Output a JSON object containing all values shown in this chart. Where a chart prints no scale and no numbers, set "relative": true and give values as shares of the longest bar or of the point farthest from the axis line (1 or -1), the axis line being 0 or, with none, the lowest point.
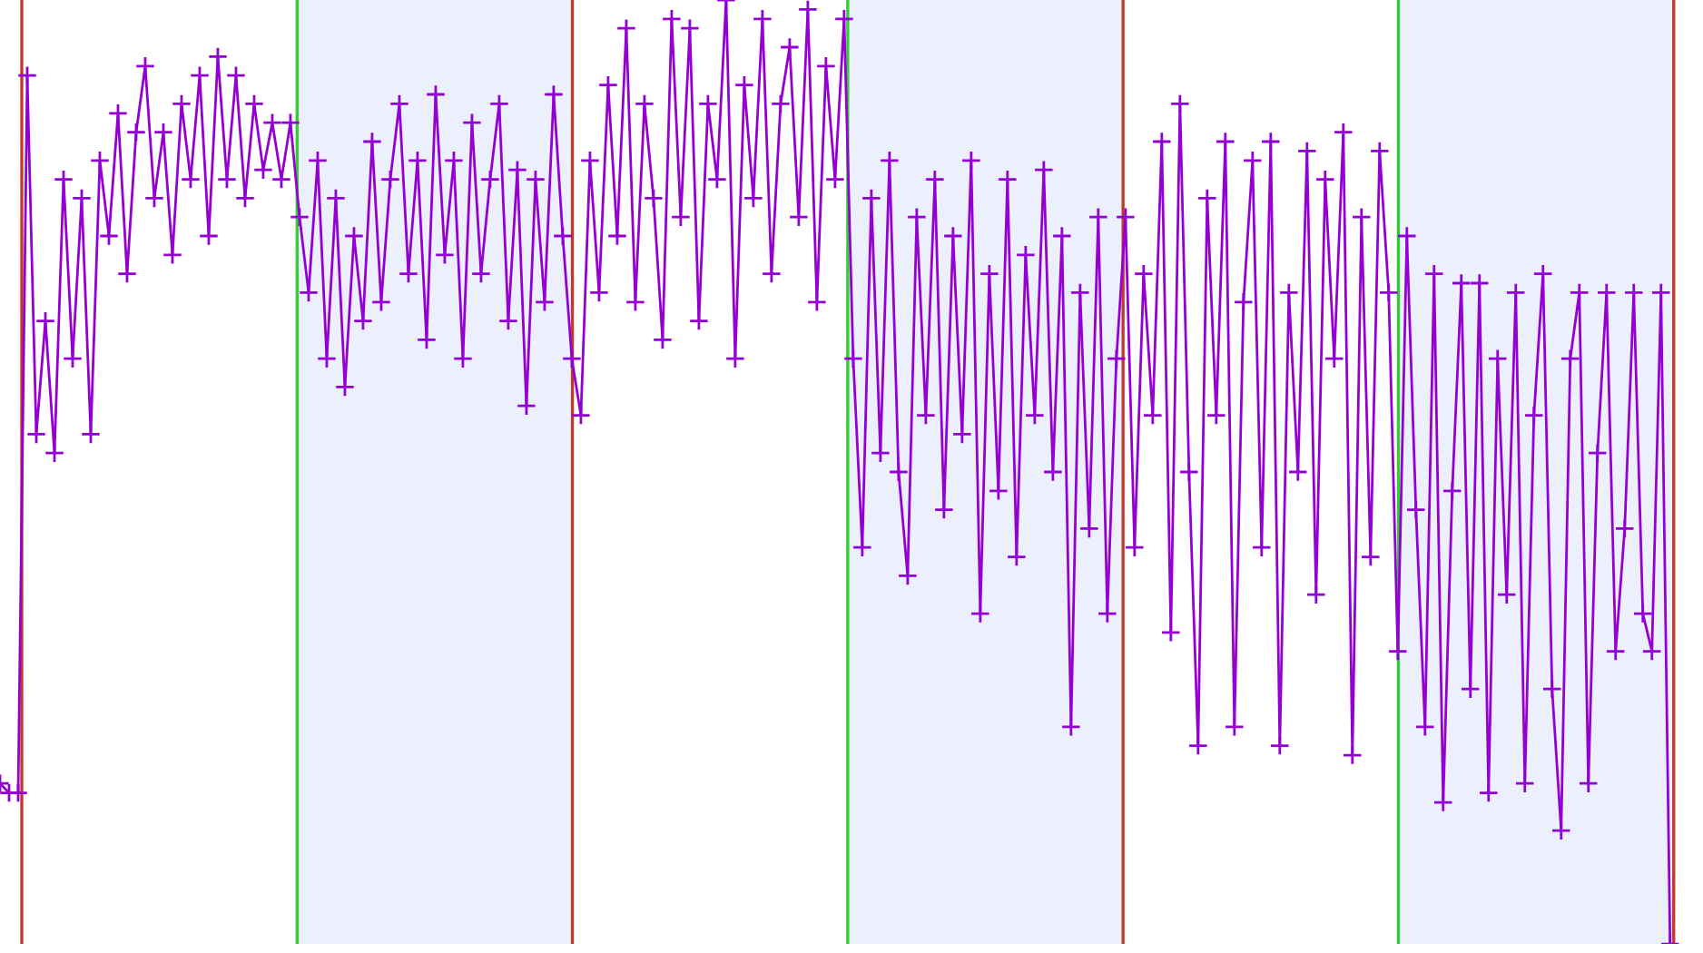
{
  "chart_data": {
    "type": "line",
    "relative": true,
    "marker": "cross",
    "line_style": "solid",
    "grid": false,
    "categories": [
      null,
      null,
      null,
      null,
      null,
      null,
      null,
      null,
      null,
      null,
      null,
      null,
      null,
      null,
      null,
      null,
      null,
      null,
      null,
      null,
      null,
      null,
      null,
      null,
      null,
      null,
      null,
      null,
      null,
      null,
      null,
      null,
      null,
      null,
      null,
      null,
      null,
      null,
      null,
      null,
      null,
      null,
      null,
      null,
      null,
      null,
      null,
      null,
      null,
      null,
      null,
      null,
      null,
      null,
      null,
      null,
      null,
      null,
      null,
      null,
      null,
      null,
      null,
      null,
      null,
      null,
      null,
      null,
      null,
      null,
      null,
      null,
      null,
      null,
      null,
      null,
      null,
      null,
      null,
      null,
      null,
      null,
      null,
      null,
      null,
      null,
      null,
      null,
      null,
      null,
      null,
      null,
      null,
      null,
      null,
      null,
      null,
      null,
      null,
      null,
      null,
      null,
      null,
      null,
      null,
      null,
      null,
      null,
      null,
      null,
      null,
      null,
      null,
      null,
      null,
      null,
      null,
      null,
      null,
      null,
      null,
      null,
      null,
      null,
      null,
      null,
      null,
      null,
      null,
      null,
      null,
      null,
      null,
      null,
      null,
      null,
      null,
      null,
      null,
      null,
      null,
      null,
      null,
      null,
      null,
      null,
      null,
      null,
      null,
      null,
      null,
      null,
      null,
      null,
      null,
      null,
      null,
      null,
      null,
      null,
      null,
      null,
      null,
      null,
      null,
      null,
      null,
      null,
      null,
      null,
      null,
      null,
      null,
      null,
      null,
      null,
      null,
      null,
      null,
      null,
      null,
      null,
      null,
      null,
      null
    ],
    "series": [
      {
        "color": "#9400d3",
        "values": [
          0.17,
          0.16,
          0.16,
          0.92,
          0.54,
          0.66,
          0.52,
          0.81,
          0.62,
          0.79,
          0.54,
          0.83,
          0.75,
          0.88,
          0.71,
          0.86,
          0.93,
          0.79,
          0.86,
          0.73,
          0.89,
          0.81,
          0.92,
          0.75,
          0.94,
          0.81,
          0.92,
          0.79,
          0.89,
          0.82,
          0.87,
          0.81,
          0.87,
          0.77,
          0.69,
          0.83,
          0.62,
          0.79,
          0.59,
          0.75,
          0.66,
          0.85,
          0.68,
          0.81,
          0.89,
          0.71,
          0.83,
          0.64,
          0.9,
          0.73,
          0.83,
          0.62,
          0.87,
          0.71,
          0.81,
          0.89,
          0.66,
          0.82,
          0.57,
          0.81,
          0.68,
          0.9,
          0.75,
          0.62,
          0.56,
          0.83,
          0.69,
          0.91,
          0.75,
          0.97,
          0.68,
          0.89,
          0.79,
          0.64,
          0.98,
          0.77,
          0.97,
          0.66,
          0.89,
          0.81,
          1.0,
          0.62,
          0.91,
          0.79,
          0.98,
          0.71,
          0.89,
          0.95,
          0.77,
          0.99,
          0.68,
          0.93,
          0.81,
          0.98,
          0.62,
          0.42,
          0.79,
          0.52,
          0.83,
          0.5,
          0.39,
          0.77,
          0.56,
          0.81,
          0.46,
          0.75,
          0.54,
          0.83,
          0.35,
          0.71,
          0.48,
          0.81,
          0.41,
          0.73,
          0.56,
          0.82,
          0.5,
          0.75,
          0.23,
          0.69,
          0.44,
          0.77,
          0.35,
          0.62,
          0.77,
          0.42,
          0.71,
          0.56,
          0.85,
          0.33,
          0.89,
          0.5,
          0.21,
          0.79,
          0.56,
          0.85,
          0.23,
          0.68,
          0.83,
          0.42,
          0.85,
          0.21,
          0.69,
          0.5,
          0.84,
          0.37,
          0.81,
          0.62,
          0.86,
          0.2,
          0.77,
          0.41,
          0.84,
          0.69,
          0.31,
          0.75,
          0.46,
          0.23,
          0.71,
          0.15,
          0.48,
          0.7,
          0.27,
          0.7,
          0.16,
          0.62,
          0.37,
          0.69,
          0.17,
          0.56,
          0.71,
          0.27,
          0.12,
          0.62,
          0.69,
          0.17,
          0.52,
          0.69,
          0.31,
          0.44,
          0.69,
          0.35,
          0.31,
          0.69,
          0.0
        ]
      }
    ],
    "legend": false
  }
}
